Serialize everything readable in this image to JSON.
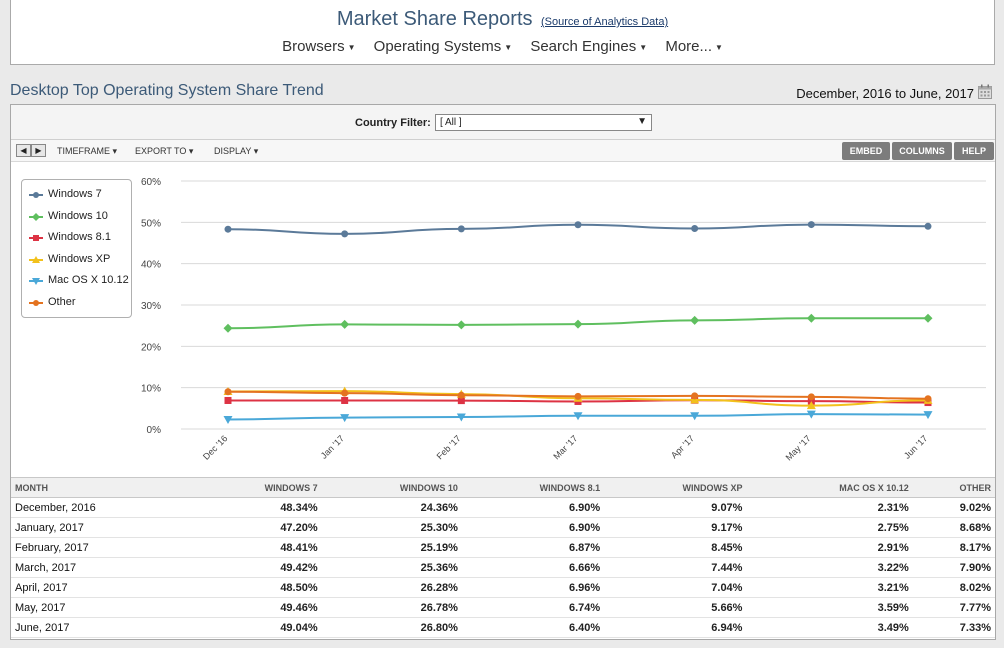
{
  "header": {
    "title": "Market Share Reports",
    "source_link": "(Source of Analytics Data)",
    "nav": [
      {
        "label": "Browsers"
      },
      {
        "label": "Operating Systems"
      },
      {
        "label": "Search Engines"
      },
      {
        "label": "More..."
      }
    ]
  },
  "page": {
    "title": "Desktop Top Operating System Share Trend",
    "date_range": "December, 2016 to June, 2017",
    "calendar_icon": "calendar-icon"
  },
  "filter": {
    "label": "Country Filter:",
    "value": "[ All ]"
  },
  "toolbar": {
    "timeframe": "TIMEFRAME",
    "export": "EXPORT TO",
    "display": "DISPLAY",
    "embed": "EMBED",
    "columns": "COLUMNS",
    "help": "HELP"
  },
  "chart_data": {
    "type": "line",
    "x": [
      "Dec '16",
      "Jan '17",
      "Feb '17",
      "Mar '17",
      "Apr '17",
      "May '17",
      "Jun '17"
    ],
    "ylim": [
      0,
      60
    ],
    "yticks": [
      "0%",
      "10%",
      "20%",
      "30%",
      "40%",
      "50%",
      "60%"
    ],
    "grid": true,
    "legend_position": "top-left",
    "series": [
      {
        "name": "Windows 7",
        "color": "#5b7a99",
        "marker": "circle",
        "values": [
          48.34,
          47.2,
          48.41,
          49.42,
          48.5,
          49.46,
          49.04
        ]
      },
      {
        "name": "Windows 10",
        "color": "#5fbf5f",
        "marker": "diamond",
        "values": [
          24.36,
          25.3,
          25.19,
          25.36,
          26.28,
          26.78,
          26.8
        ]
      },
      {
        "name": "Windows 8.1",
        "color": "#dd3344",
        "marker": "square",
        "values": [
          6.9,
          6.9,
          6.87,
          6.66,
          6.96,
          6.74,
          6.4
        ]
      },
      {
        "name": "Windows XP",
        "color": "#f2c11c",
        "marker": "triangle-up",
        "values": [
          9.07,
          9.17,
          8.45,
          7.44,
          7.04,
          5.66,
          6.94
        ]
      },
      {
        "name": "Mac OS X 10.12",
        "color": "#4aa8d8",
        "marker": "triangle-down",
        "values": [
          2.31,
          2.75,
          2.91,
          3.22,
          3.21,
          3.59,
          3.49
        ]
      },
      {
        "name": "Other",
        "color": "#e47320",
        "marker": "circle",
        "values": [
          9.02,
          8.68,
          8.17,
          7.9,
          8.02,
          7.77,
          7.33
        ]
      }
    ]
  },
  "table": {
    "columns": [
      "MONTH",
      "WINDOWS 7",
      "WINDOWS 10",
      "WINDOWS 8.1",
      "WINDOWS XP",
      "MAC OS X 10.12",
      "OTHER"
    ],
    "rows": [
      [
        "December, 2016",
        "48.34%",
        "24.36%",
        "6.90%",
        "9.07%",
        "2.31%",
        "9.02%"
      ],
      [
        "January, 2017",
        "47.20%",
        "25.30%",
        "6.90%",
        "9.17%",
        "2.75%",
        "8.68%"
      ],
      [
        "February, 2017",
        "48.41%",
        "25.19%",
        "6.87%",
        "8.45%",
        "2.91%",
        "8.17%"
      ],
      [
        "March, 2017",
        "49.42%",
        "25.36%",
        "6.66%",
        "7.44%",
        "3.22%",
        "7.90%"
      ],
      [
        "April, 2017",
        "48.50%",
        "26.28%",
        "6.96%",
        "7.04%",
        "3.21%",
        "8.02%"
      ],
      [
        "May, 2017",
        "49.46%",
        "26.78%",
        "6.74%",
        "5.66%",
        "3.59%",
        "7.77%"
      ],
      [
        "June, 2017",
        "49.04%",
        "26.80%",
        "6.40%",
        "6.94%",
        "3.49%",
        "7.33%"
      ]
    ]
  }
}
